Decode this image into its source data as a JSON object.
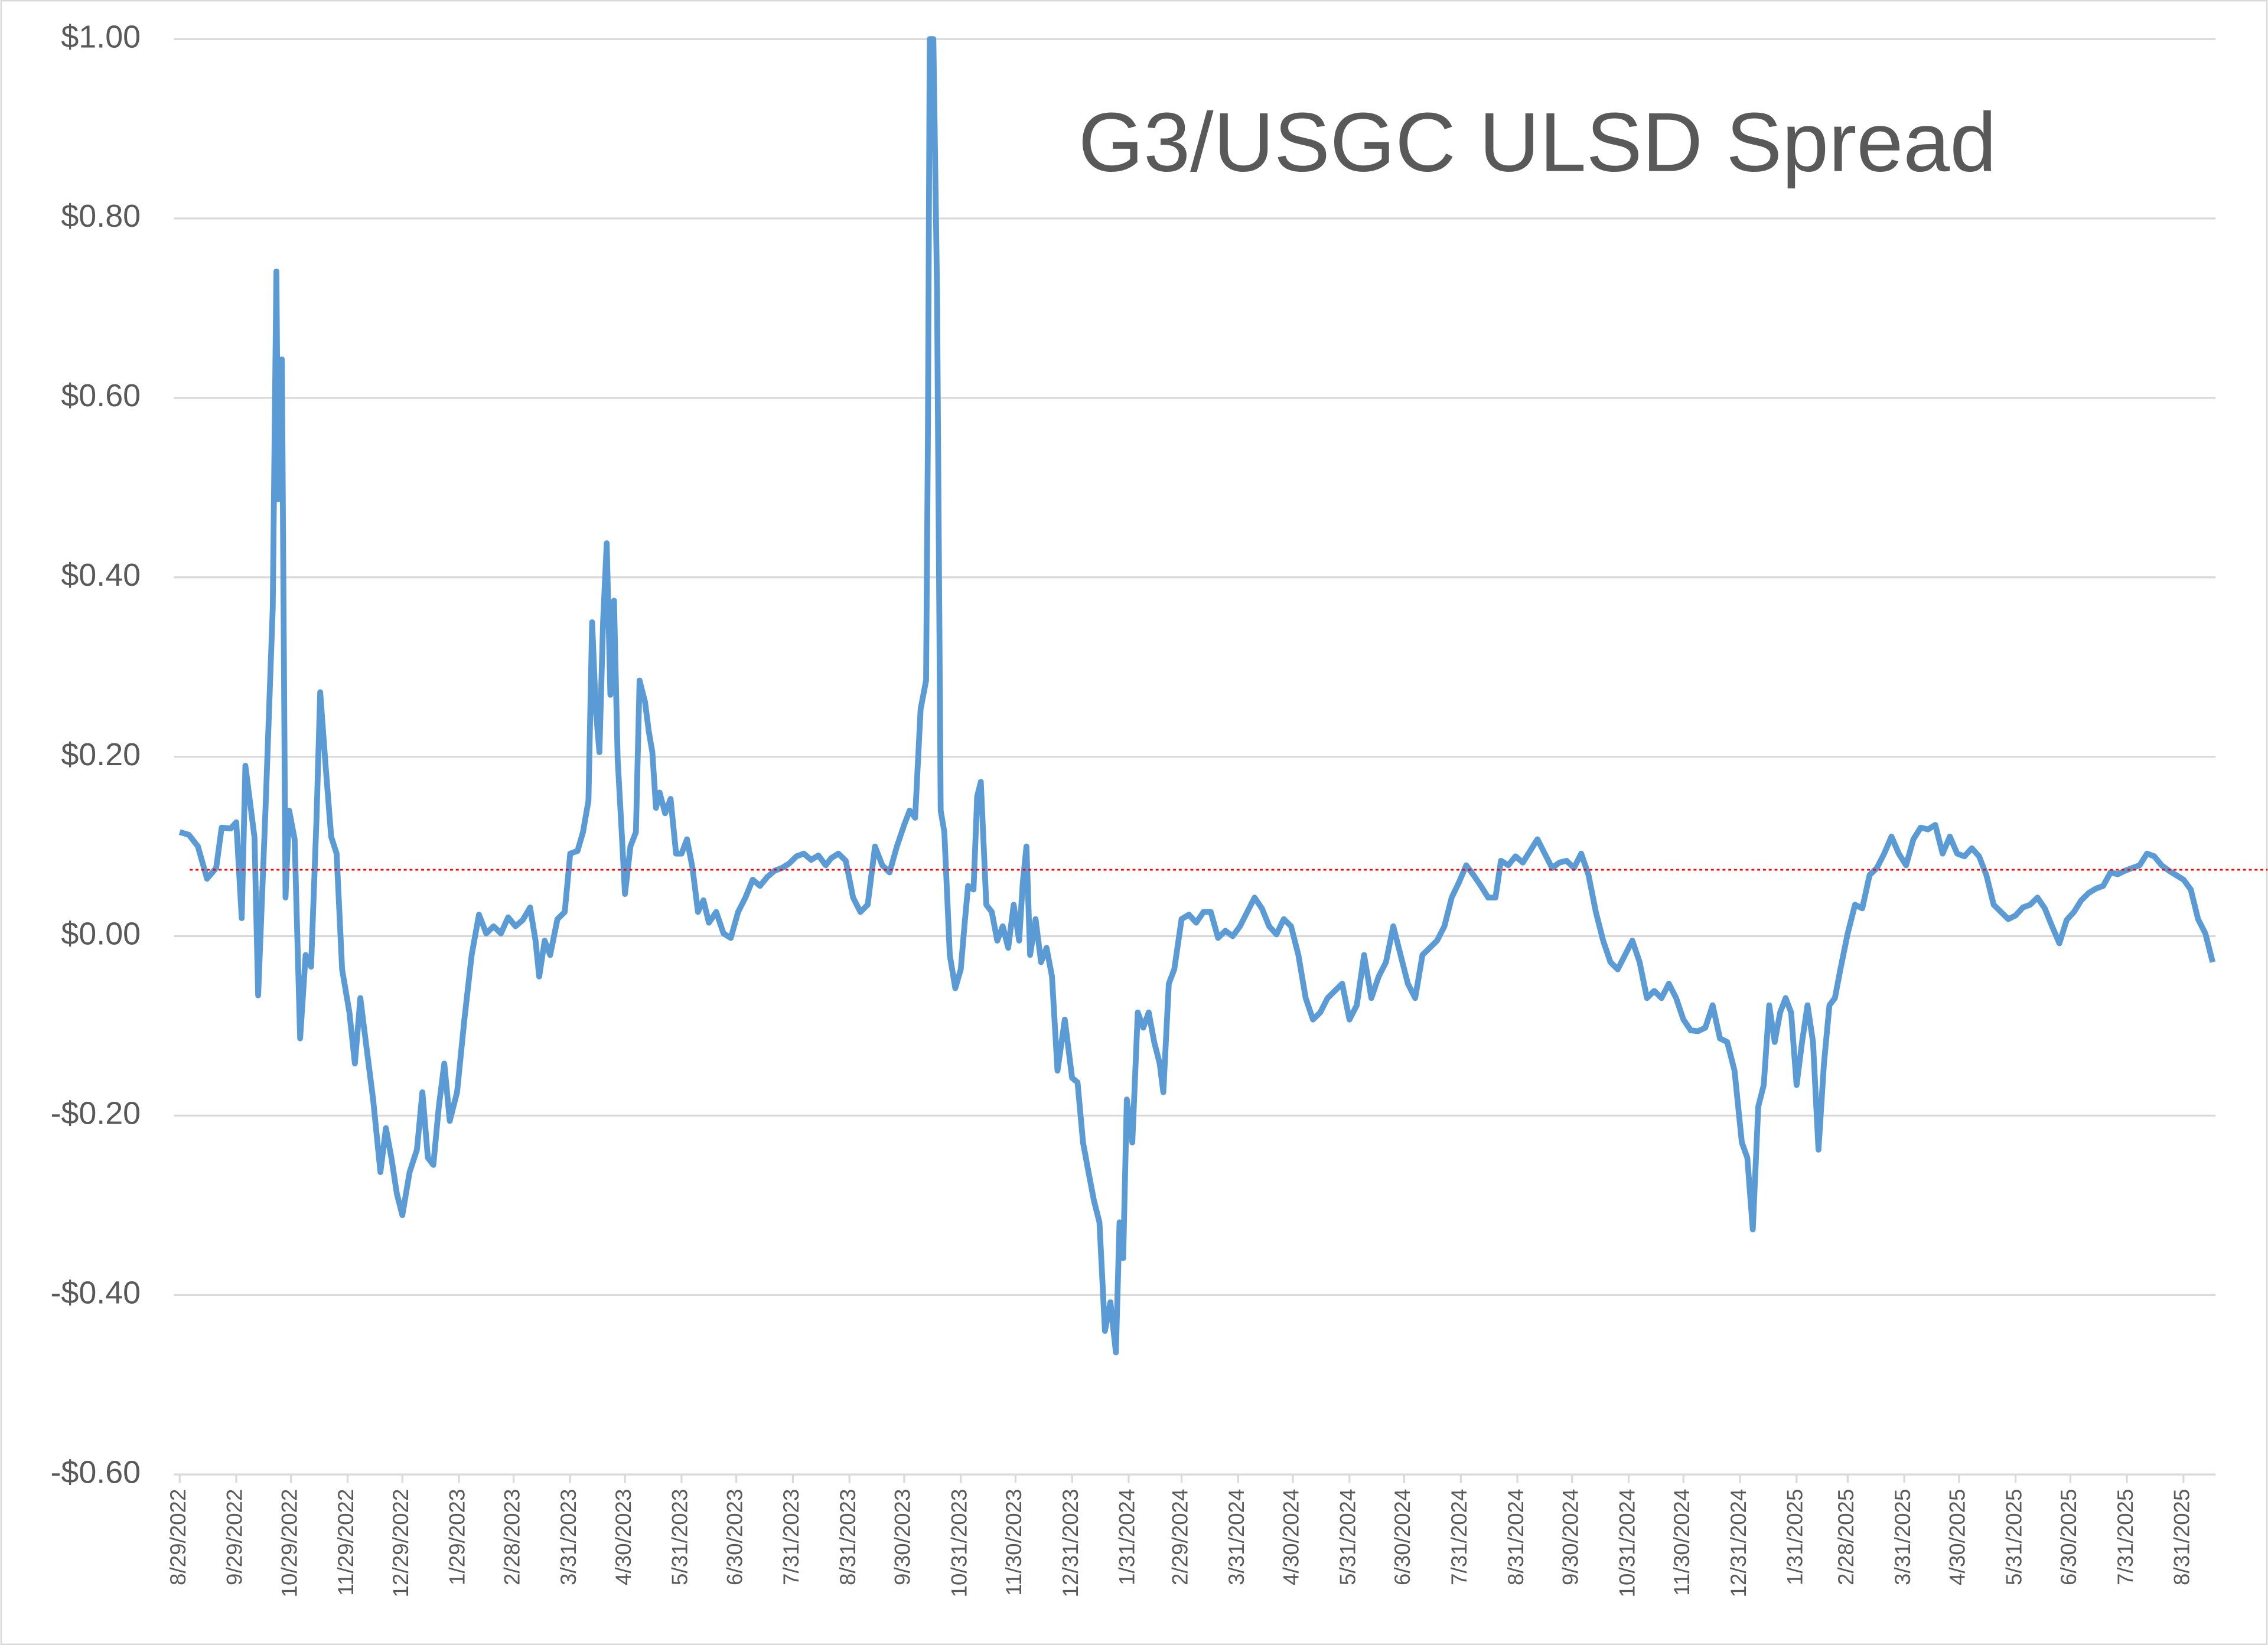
{
  "chart_data": {
    "type": "line",
    "title": "G3/USGC ULSD Spread",
    "color": "#5b9bd5",
    "grid": true,
    "ylim": [
      -0.6,
      1.0
    ],
    "yticks": [
      {
        "value": 1.0,
        "label": "$1.00"
      },
      {
        "value": 0.8,
        "label": "$0.80"
      },
      {
        "value": 0.6,
        "label": "$0.60"
      },
      {
        "value": 0.4,
        "label": "$0.40"
      },
      {
        "value": 0.2,
        "label": "$0.20"
      },
      {
        "value": 0.0,
        "label": "$0.00"
      },
      {
        "value": -0.2,
        "label": "-$0.20"
      },
      {
        "value": -0.4,
        "label": "-$0.40"
      },
      {
        "value": -0.6,
        "label": "-$0.60"
      }
    ],
    "xlim": [
      "8/29/2022",
      "9/16/2025"
    ],
    "xticks": [
      "8/29/2022",
      "9/29/2022",
      "10/29/2022",
      "11/29/2022",
      "12/29/2022",
      "1/29/2023",
      "2/28/2023",
      "3/31/2023",
      "4/30/2023",
      "5/31/2023",
      "6/30/2023",
      "7/31/2023",
      "8/31/2023",
      "9/30/2023",
      "10/31/2023",
      "11/30/2023",
      "12/31/2023",
      "1/31/2024",
      "2/29/2024",
      "3/31/2024",
      "4/30/2024",
      "5/31/2024",
      "6/30/2024",
      "7/31/2024",
      "8/31/2024",
      "9/30/2024",
      "10/31/2024",
      "11/30/2024",
      "12/31/2024",
      "1/31/2025",
      "2/28/2025",
      "3/31/2025",
      "4/30/2025",
      "5/31/2025",
      "6/30/2025",
      "7/31/2025",
      "8/31/2025"
    ],
    "reference_line": {
      "value": 0.074,
      "color": "#ff0000"
    },
    "x": [
      "8/29/2022",
      "9/3/2022",
      "9/8/2022",
      "9/13/2022",
      "9/18/2022",
      "9/21/2022",
      "9/26/2022",
      "9/29/2022",
      "10/2/2022",
      "10/4/2022",
      "10/9/2022",
      "10/11/2022",
      "10/15/2022",
      "10/19/2022",
      "10/21/2022",
      "10/22/2022",
      "10/24/2022",
      "10/26/2022",
      "10/28/2022",
      "10/31/2022",
      "11/3/2022",
      "11/6/2022",
      "11/9/2022",
      "11/12/2022",
      "11/14/2022",
      "11/17/2022",
      "11/20/2022",
      "11/23/2022",
      "11/26/2022",
      "11/30/2022",
      "12/3/2022",
      "12/6/2022",
      "12/9/2022",
      "12/13/2022",
      "12/17/2022",
      "12/20/2022",
      "12/23/2022",
      "12/26/2022",
      "12/29/2022",
      "1/2/2023",
      "1/6/2023",
      "1/9/2023",
      "1/12/2023",
      "1/15/2023",
      "1/18/2023",
      "1/21/2023",
      "1/24/2023",
      "1/28/2023",
      "2/1/2023",
      "2/5/2023",
      "2/9/2023",
      "2/13/2023",
      "2/17/2023",
      "2/21/2023",
      "2/25/2023",
      "3/1/2023",
      "3/5/2023",
      "3/9/2023",
      "3/12/2023",
      "3/14/2023",
      "3/17/2023",
      "3/20/2023",
      "3/24/2023",
      "3/28/2023",
      "3/31/2023",
      "4/4/2023",
      "4/7/2023",
      "4/10/2023",
      "4/12/2023",
      "4/14/2023",
      "4/16/2023",
      "4/18/2023",
      "4/20/2023",
      "4/22/2023",
      "4/24/2023",
      "4/26/2023",
      "4/28/2023",
      "4/30/2023",
      "5/3/2023",
      "5/6/2023",
      "5/8/2023",
      "5/11/2023",
      "5/13/2023",
      "5/15/2023",
      "5/17/2023",
      "5/19/2023",
      "5/22/2023",
      "5/25/2023",
      "5/28/2023",
      "5/31/2023",
      "6/3/2023",
      "6/6/2023",
      "6/9/2023",
      "6/12/2023",
      "6/15/2023",
      "6/19/2023",
      "6/23/2023",
      "6/27/2023",
      "7/1/2023",
      "7/5/2023",
      "7/9/2023",
      "7/13/2023",
      "7/17/2023",
      "7/21/2023",
      "7/25/2023",
      "7/29/2023",
      "8/2/2023",
      "8/6/2023",
      "8/10/2023",
      "8/14/2023",
      "8/18/2023",
      "8/21/2023",
      "8/25/2023",
      "8/29/2023",
      "9/2/2023",
      "9/6/2023",
      "9/10/2023",
      "9/14/2023",
      "9/18/2023",
      "9/22/2023",
      "9/26/2023",
      "9/30/2023",
      "10/3/2023",
      "10/6/2023",
      "10/9/2023",
      "10/12/2023",
      "10/13/2023",
      "10/14/2023",
      "10/16/2023",
      "10/18/2023",
      "10/20/2023",
      "10/22/2023",
      "10/25/2023",
      "10/28/2023",
      "10/31/2023",
      "11/2/2023",
      "11/4/2023",
      "11/7/2023",
      "11/9/2023",
      "11/11/2023",
      "11/14/2023",
      "11/17/2023",
      "11/20/2023",
      "11/23/2023",
      "11/26/2023",
      "11/29/2023",
      "12/2/2023",
      "12/4/2023",
      "12/6/2023",
      "12/8/2023",
      "12/11/2023",
      "12/14/2023",
      "12/17/2023",
      "12/20/2023",
      "12/23/2023",
      "12/27/2023",
      "12/31/2023",
      "1/3/2024",
      "1/6/2024",
      "1/9/2024",
      "1/12/2024",
      "1/15/2024",
      "1/18/2024",
      "1/21/2024",
      "1/24/2024",
      "1/26/2024",
      "1/28/2024",
      "1/30/2024",
      "2/2/2024",
      "2/5/2024",
      "2/8/2024",
      "2/11/2024",
      "2/14/2024",
      "2/17/2024",
      "2/19/2024",
      "2/22/2024",
      "2/25/2024",
      "2/29/2024",
      "3/4/2024",
      "3/8/2024",
      "3/12/2024",
      "3/16/2024",
      "3/20/2024",
      "3/24/2024",
      "3/28/2024",
      "4/1/2024",
      "4/5/2024",
      "4/9/2024",
      "4/13/2024",
      "4/17/2024",
      "4/21/2024",
      "4/25/2024",
      "4/29/2024",
      "5/3/2024",
      "5/7/2024",
      "5/11/2024",
      "5/15/2024",
      "5/19/2024",
      "5/23/2024",
      "5/27/2024",
      "5/31/2024",
      "6/4/2024",
      "6/8/2024",
      "6/12/2024",
      "6/16/2024",
      "6/20/2024",
      "6/24/2024",
      "6/28/2024",
      "7/2/2024",
      "7/6/2024",
      "7/10/2024",
      "7/14/2024",
      "7/18/2024",
      "7/22/2024",
      "7/26/2024",
      "7/30/2024",
      "8/3/2024",
      "8/7/2024",
      "8/11/2024",
      "8/15/2024",
      "8/19/2024",
      "8/22/2024",
      "8/26/2024",
      "8/30/2024",
      "9/3/2024",
      "9/7/2024",
      "9/11/2024",
      "9/15/2024",
      "9/19/2024",
      "9/23/2024",
      "9/27/2024",
      "10/1/2024",
      "10/5/2024",
      "10/9/2024",
      "10/13/2024",
      "10/17/2024",
      "10/21/2024",
      "10/25/2024",
      "10/29/2024",
      "11/2/2024",
      "11/6/2024",
      "11/10/2024",
      "11/14/2024",
      "11/18/2024",
      "11/22/2024",
      "11/26/2024",
      "11/30/2024",
      "12/4/2024",
      "12/8/2024",
      "12/12/2024",
      "12/16/2024",
      "12/20/2024",
      "12/24/2024",
      "12/28/2024",
      "1/1/2025",
      "1/4/2025",
      "1/7/2025",
      "1/10/2025",
      "1/13/2025",
      "1/16/2025",
      "1/19/2025",
      "1/22/2025",
      "1/25/2025",
      "1/28/2025",
      "1/31/2025",
      "2/3/2025",
      "2/6/2025",
      "2/9/2025",
      "2/12/2025",
      "2/15/2025",
      "2/18/2025",
      "2/21/2025",
      "2/24/2025",
      "2/28/2025",
      "3/4/2025",
      "3/8/2025",
      "3/12/2025",
      "3/16/2025",
      "3/20/2025",
      "3/24/2025",
      "3/28/2025",
      "4/1/2025",
      "4/5/2025",
      "4/9/2025",
      "4/13/2025",
      "4/17/2025",
      "4/21/2025",
      "4/25/2025",
      "4/29/2025",
      "5/3/2025",
      "5/7/2025",
      "5/11/2025",
      "5/15/2025",
      "5/19/2025",
      "5/23/2025",
      "5/27/2025",
      "5/31/2025",
      "6/4/2025",
      "6/8/2025",
      "6/12/2025",
      "6/16/2025",
      "6/20/2025",
      "6/24/2025",
      "6/28/2025",
      "7/2/2025",
      "7/6/2025",
      "7/10/2025",
      "7/14/2025",
      "7/18/2025",
      "7/22/2025",
      "7/26/2025",
      "7/30/2025",
      "8/3/2025",
      "8/7/2025",
      "8/11/2025",
      "8/15/2025",
      "8/19/2025",
      "8/23/2025",
      "8/27/2025",
      "8/31/2025",
      "9/4/2025",
      "9/8/2025",
      "9/12/2025",
      "9/16/2025"
    ],
    "values": [
      0.116,
      0.113,
      0.1,
      0.064,
      0.076,
      0.121,
      0.12,
      0.127,
      0.02,
      0.19,
      0.11,
      -0.066,
      0.14,
      0.366,
      0.741,
      0.487,
      0.643,
      0.043,
      0.14,
      0.108,
      -0.114,
      -0.021,
      -0.034,
      0.132,
      0.272,
      0.189,
      0.111,
      0.092,
      -0.037,
      -0.085,
      -0.142,
      -0.069,
      -0.118,
      -0.182,
      -0.263,
      -0.214,
      -0.247,
      -0.287,
      -0.311,
      -0.263,
      -0.238,
      -0.174,
      -0.247,
      -0.255,
      -0.19,
      -0.142,
      -0.206,
      -0.174,
      -0.093,
      -0.021,
      0.024,
      0.003,
      0.011,
      0.003,
      0.021,
      0.011,
      0.018,
      0.032,
      -0.005,
      -0.045,
      -0.005,
      -0.021,
      0.019,
      0.027,
      0.092,
      0.095,
      0.116,
      0.151,
      0.35,
      0.253,
      0.205,
      0.35,
      0.438,
      0.269,
      0.374,
      0.197,
      0.124,
      0.047,
      0.1,
      0.116,
      0.285,
      0.261,
      0.229,
      0.205,
      0.143,
      0.16,
      0.137,
      0.153,
      0.092,
      0.092,
      0.108,
      0.076,
      0.027,
      0.04,
      0.015,
      0.027,
      0.003,
      -0.002,
      0.027,
      0.043,
      0.063,
      0.056,
      0.066,
      0.073,
      0.076,
      0.081,
      0.089,
      0.092,
      0.085,
      0.09,
      0.079,
      0.087,
      0.092,
      0.084,
      0.043,
      0.027,
      0.035,
      0.1,
      0.079,
      0.071,
      0.1,
      0.124,
      0.14,
      0.132,
      0.253,
      0.285,
      0.559,
      1.0,
      1.0,
      0.72,
      0.14,
      0.116,
      -0.021,
      -0.058,
      -0.037,
      0.011,
      0.056,
      0.052,
      0.156,
      0.172,
      0.035,
      0.027,
      -0.005,
      0.011,
      -0.013,
      0.035,
      -0.005,
      0.06,
      0.1,
      -0.021,
      0.019,
      -0.029,
      -0.013,
      -0.045,
      -0.15,
      -0.093,
      -0.158,
      -0.163,
      -0.23,
      -0.263,
      -0.295,
      -0.319,
      -0.44,
      -0.408,
      -0.464,
      -0.319,
      -0.359,
      -0.182,
      -0.23,
      -0.085,
      -0.102,
      -0.085,
      -0.118,
      -0.142,
      -0.174,
      -0.053,
      -0.037,
      0.019,
      0.024,
      0.015,
      0.027,
      0.027,
      -0.002,
      0.006,
      0.0,
      0.011,
      0.027,
      0.043,
      0.031,
      0.011,
      0.002,
      0.019,
      0.011,
      -0.021,
      -0.069,
      -0.093,
      -0.085,
      -0.069,
      -0.061,
      -0.053,
      -0.093,
      -0.077,
      -0.021,
      -0.069,
      -0.045,
      -0.029,
      0.011,
      -0.021,
      -0.053,
      -0.069,
      -0.021,
      -0.013,
      -0.005,
      0.011,
      0.043,
      0.06,
      0.079,
      0.068,
      0.056,
      0.043,
      0.043,
      0.084,
      0.079,
      0.089,
      0.082,
      0.095,
      0.108,
      0.092,
      0.076,
      0.082,
      0.084,
      0.076,
      0.092,
      0.068,
      0.027,
      -0.005,
      -0.029,
      -0.037,
      -0.021,
      -0.005,
      -0.029,
      -0.069,
      -0.061,
      -0.069,
      -0.053,
      -0.069,
      -0.093,
      -0.105,
      -0.106,
      -0.102,
      -0.077,
      -0.114,
      -0.118,
      -0.15,
      -0.23,
      -0.247,
      -0.327,
      -0.19,
      -0.166,
      -0.077,
      -0.118,
      -0.085,
      -0.069,
      -0.085,
      -0.166,
      -0.118,
      -0.077,
      -0.118,
      -0.238,
      -0.142,
      -0.077,
      -0.069,
      -0.037,
      0.003,
      0.035,
      0.031,
      0.068,
      0.076,
      0.092,
      0.111,
      0.092,
      0.079,
      0.108,
      0.121,
      0.119,
      0.124,
      0.092,
      0.111,
      0.092,
      0.089,
      0.098,
      0.089,
      0.068,
      0.035,
      0.027,
      0.019,
      0.023,
      0.032,
      0.035,
      0.043,
      0.031,
      0.011,
      -0.008,
      0.018,
      0.027,
      0.04,
      0.048,
      0.053,
      0.056,
      0.071,
      0.069,
      0.073,
      0.076,
      0.079,
      0.092,
      0.089,
      0.079,
      0.073,
      0.068,
      0.063,
      0.052,
      0.019,
      0.003,
      -0.029
    ]
  }
}
